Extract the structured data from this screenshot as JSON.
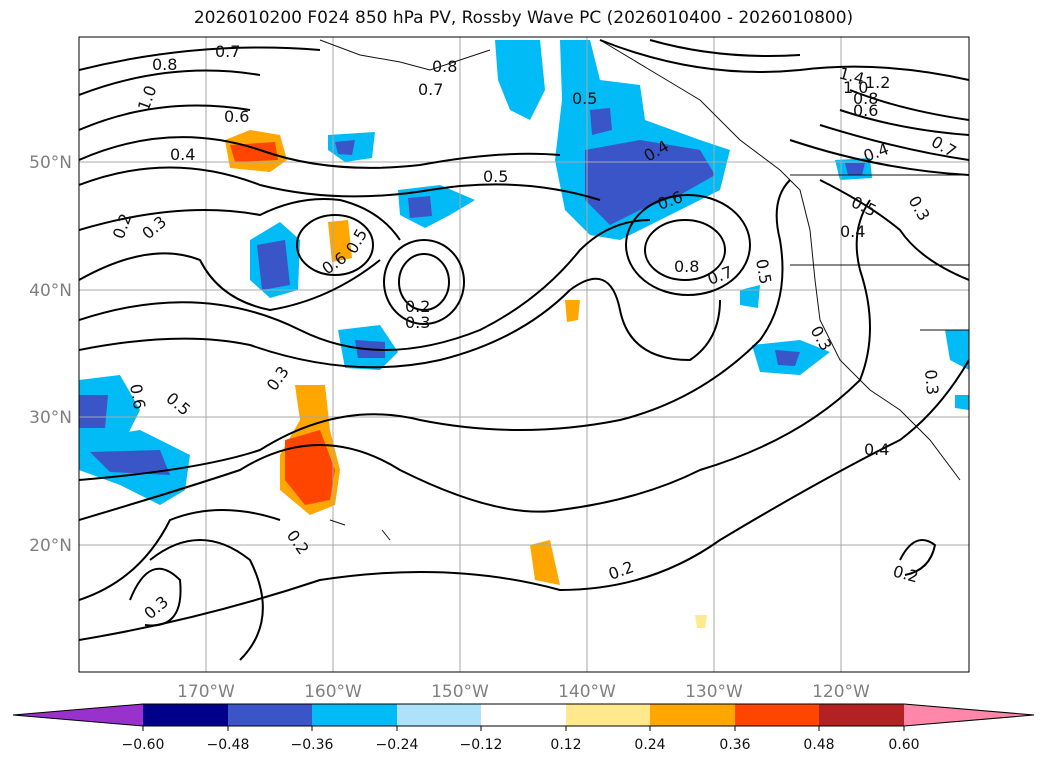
{
  "title": "2026010200 F024 850 hPa PV, Rossby Wave PC (2026010400 - 2026010800)",
  "lat_ticks": [
    "50°N",
    "40°N",
    "30°N",
    "20°N"
  ],
  "lon_ticks": [
    "170°W",
    "160°W",
    "150°W",
    "140°W",
    "130°W",
    "120°W"
  ],
  "colorbar": {
    "colors": [
      "#9932cc",
      "#00008b",
      "#3a55c8",
      "#00bbf5",
      "#aee2fa",
      "#ffffff",
      "#ffe98c",
      "#ffa600",
      "#ff4500",
      "#b22222",
      "#ff88aa"
    ],
    "tick_labels": [
      "−0.60",
      "−0.48",
      "−0.36",
      "−0.24",
      "−0.12",
      "0.12",
      "0.24",
      "0.36",
      "0.48",
      "0.60"
    ]
  },
  "contour_labels": [
    "0.7",
    "0.8",
    "1.0",
    "0.6",
    "0.4",
    "0.2",
    "0.3",
    "0.6",
    "0.5",
    "0.2",
    "0.3",
    "0.8",
    "0.7",
    "0.5",
    "0.5",
    "0.4",
    "0.6",
    "0.8",
    "0.7",
    "0.5",
    "1.4",
    "1.2",
    "1.0",
    "0.8",
    "0.6",
    "0.4",
    "0.5",
    "0.4",
    "0.3",
    "0.4",
    "0.3",
    "0.7",
    "0.6",
    "0.5",
    "0.3",
    "0.2",
    "0.3",
    "0.2",
    "0.2",
    "0.3"
  ]
}
